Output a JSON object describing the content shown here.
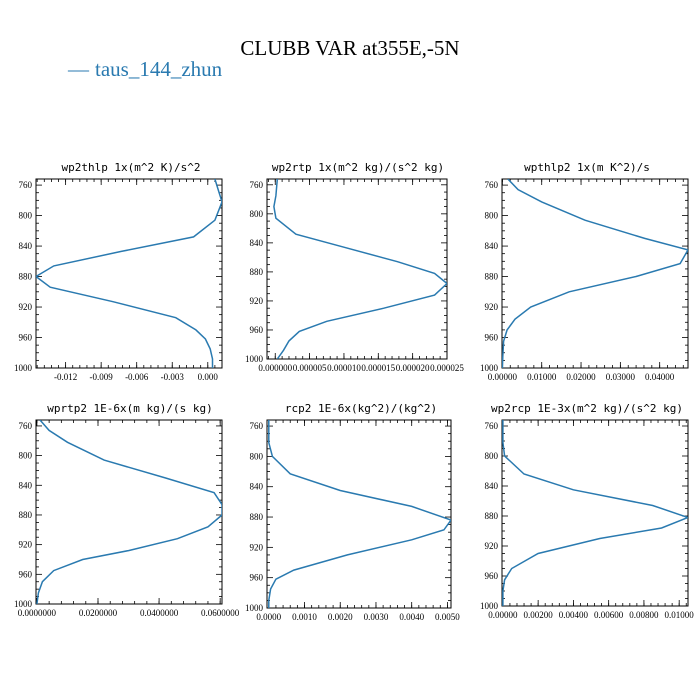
{
  "title": "CLUBB VAR at355E,-5N",
  "legend": {
    "label": "taus_144_zhun",
    "color": "#2a7ab0",
    "symbol": "—"
  },
  "line_color": "#2a7ab0",
  "chart_data": [
    {
      "type": "line",
      "title": "wp2thlp   1x(m^2 K)/s^2",
      "xlim": [
        -0.0145,
        0.0012
      ],
      "ylim": [
        1000,
        752
      ],
      "xticks": [
        -0.012,
        -0.009,
        -0.006,
        -0.003,
        0.0
      ],
      "xtick_labels": [
        "-0.012",
        "-0.009",
        "-0.006",
        "-0.003",
        "0.000"
      ],
      "yticks": [
        760,
        800,
        840,
        880,
        920,
        960,
        1000
      ],
      "series": [
        {
          "points": [
            [
              0.0006,
              752
            ],
            [
              0.0009,
              767
            ],
            [
              0.0012,
              782
            ],
            [
              0.0006,
              806
            ],
            [
              -0.0012,
              828
            ],
            [
              -0.0073,
              847
            ],
            [
              -0.013,
              866
            ],
            [
              -0.0145,
              880
            ],
            [
              -0.0133,
              894
            ],
            [
              -0.008,
              913
            ],
            [
              -0.0027,
              934
            ],
            [
              -0.001,
              950
            ],
            [
              -0.0002,
              962
            ],
            [
              0.0002,
              975
            ],
            [
              0.0004,
              988
            ],
            [
              0.0004,
              1000
            ]
          ]
        }
      ]
    },
    {
      "type": "line",
      "title": "wp2rtp   1x(m^2 kg)/(s^2 kg)",
      "xlim": [
        -1.2e-06,
        2.5e-05
      ],
      "ylim": [
        1000,
        752
      ],
      "xticks": [
        0.0,
        5e-06,
        1e-05,
        1.5e-05,
        2e-05,
        2.5e-05
      ],
      "xtick_labels": [
        "0.000000",
        "0.000005",
        "0.000010",
        "0.000015",
        "0.000020",
        "0.000025"
      ],
      "yticks": [
        760,
        800,
        840,
        880,
        920,
        960,
        1000
      ],
      "series": [
        {
          "points": [
            [
              3e-07,
              752
            ],
            [
              1e-07,
              775
            ],
            [
              -2e-07,
              790
            ],
            [
              1e-07,
              806
            ],
            [
              3e-06,
              828
            ],
            [
              1e-05,
              846
            ],
            [
              1.78e-05,
              866
            ],
            [
              2.32e-05,
              882
            ],
            [
              2.5e-05,
              896
            ],
            [
              2.32e-05,
              912
            ],
            [
              1.58e-05,
              930
            ],
            [
              7.5e-06,
              948
            ],
            [
              3.5e-06,
              962
            ],
            [
              2e-06,
              975
            ],
            [
              1.2e-06,
              988
            ],
            [
              3e-07,
              1000
            ]
          ]
        }
      ]
    },
    {
      "type": "line",
      "title": "wpthlp2   1x(m K^2)/s",
      "xlim": [
        -0.0001,
        0.0472
      ],
      "ylim": [
        1000,
        752
      ],
      "xticks": [
        0.0,
        0.01,
        0.02,
        0.03,
        0.04
      ],
      "xtick_labels": [
        "0.00000",
        "0.01000",
        "0.02000",
        "0.03000",
        "0.04000"
      ],
      "yticks": [
        760,
        800,
        840,
        880,
        920,
        960,
        1000
      ],
      "series": [
        {
          "points": [
            [
              0.0014,
              752
            ],
            [
              0.004,
              766
            ],
            [
              0.01,
              782
            ],
            [
              0.021,
              806
            ],
            [
              0.0362,
              830
            ],
            [
              0.0472,
              845
            ],
            [
              0.0452,
              863
            ],
            [
              0.034,
              880
            ],
            [
              0.017,
              900
            ],
            [
              0.0072,
              920
            ],
            [
              0.0032,
              936
            ],
            [
              0.0012,
              950
            ],
            [
              0.0003,
              965
            ],
            [
              0.0001,
              985
            ],
            [
              0.0,
              1000
            ]
          ]
        }
      ]
    },
    {
      "type": "line",
      "title": "wprtp2   1E-6x(m kg)/(s kg)",
      "xlim": [
        -0.0003,
        0.0606
      ],
      "ylim": [
        1000,
        752
      ],
      "xticks": [
        0.0,
        0.02,
        0.04,
        0.06
      ],
      "xtick_labels": [
        "0.0000000",
        "0.0200000",
        "0.0400000",
        "0.0600000"
      ],
      "yticks": [
        760,
        800,
        840,
        880,
        920,
        960,
        1000
      ],
      "series": [
        {
          "points": [
            [
              0.001,
              752
            ],
            [
              0.004,
              766
            ],
            [
              0.01,
              782
            ],
            [
              0.022,
              806
            ],
            [
              0.042,
              830
            ],
            [
              0.058,
              850
            ],
            [
              0.0606,
              866
            ],
            [
              0.0606,
              880
            ],
            [
              0.056,
              896
            ],
            [
              0.046,
              912
            ],
            [
              0.03,
              928
            ],
            [
              0.015,
              940
            ],
            [
              0.0055,
              955
            ],
            [
              0.0018,
              970
            ],
            [
              0.0005,
              985
            ],
            [
              0.0,
              1000
            ]
          ]
        }
      ]
    },
    {
      "type": "line",
      "title": "rcp2   1E-6x(kg^2)/(kg^2)",
      "xlim": [
        -5e-05,
        0.0051
      ],
      "ylim": [
        1000,
        752
      ],
      "xticks": [
        0.0,
        0.001,
        0.002,
        0.003,
        0.004,
        0.005
      ],
      "xtick_labels": [
        "0.0000",
        "0.0010",
        "0.0020",
        "0.0030",
        "0.0040",
        "0.0050"
      ],
      "yticks": [
        760,
        800,
        840,
        880,
        920,
        960,
        1000
      ],
      "series": [
        {
          "points": [
            [
              0.0,
              752
            ],
            [
              0.0,
              766
            ],
            [
              0.0,
              782
            ],
            [
              0.0001,
              800
            ],
            [
              0.0006,
              823
            ],
            [
              0.002,
              845
            ],
            [
              0.004,
              866
            ],
            [
              0.0051,
              884
            ],
            [
              0.0049,
              897
            ],
            [
              0.004,
              910
            ],
            [
              0.0022,
              930
            ],
            [
              0.0007,
              950
            ],
            [
              0.0002,
              962
            ],
            [
              5e-05,
              975
            ],
            [
              0.0,
              990
            ],
            [
              0.0,
              1000
            ]
          ]
        }
      ]
    },
    {
      "type": "line",
      "title": "wp2rcp   1E-3x(m^2 kg)/(s^2 kg)",
      "xlim": [
        -5e-05,
        0.0105
      ],
      "ylim": [
        1000,
        752
      ],
      "xticks": [
        0.0,
        0.002,
        0.004,
        0.006,
        0.008,
        0.01
      ],
      "xtick_labels": [
        "0.00000",
        "0.00200",
        "0.00400",
        "0.00600",
        "0.00800",
        "0.01000"
      ],
      "yticks": [
        760,
        800,
        840,
        880,
        920,
        960,
        1000
      ],
      "series": [
        {
          "points": [
            [
              0.0,
              752
            ],
            [
              0.0,
              766
            ],
            [
              0.0,
              782
            ],
            [
              0.0001,
              800
            ],
            [
              0.0012,
              824
            ],
            [
              0.004,
              845
            ],
            [
              0.0085,
              866
            ],
            [
              0.0105,
              882
            ],
            [
              0.009,
              896
            ],
            [
              0.0055,
              910
            ],
            [
              0.002,
              930
            ],
            [
              0.0005,
              950
            ],
            [
              0.0001,
              965
            ],
            [
              0.0,
              980
            ],
            [
              0.0,
              1000
            ]
          ]
        }
      ]
    }
  ]
}
